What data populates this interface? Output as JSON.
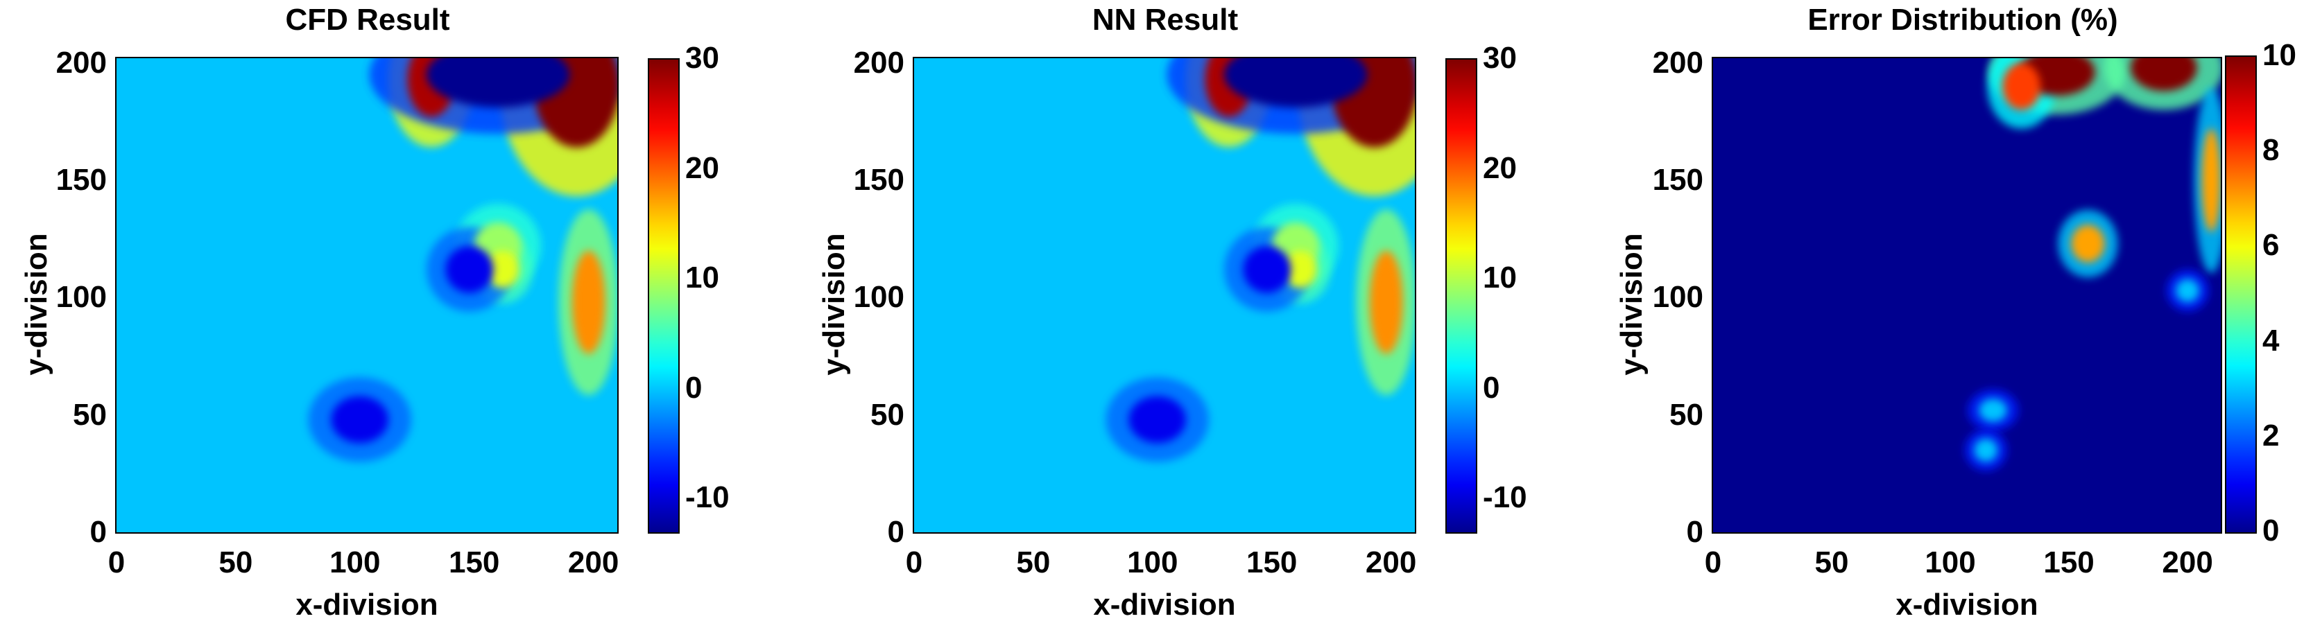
{
  "figure": {
    "panels": [
      {
        "title": "CFD Result",
        "xlabel": "x-division",
        "ylabel": "y-division",
        "colorbar_ticks": [
          "30",
          "20",
          "10",
          "0",
          "-10"
        ]
      },
      {
        "title": "NN Result",
        "xlabel": "x-division",
        "ylabel": "y-division",
        "colorbar_ticks": [
          "30",
          "20",
          "10",
          "0",
          "-10"
        ]
      },
      {
        "title": "Error Distribution (%)",
        "xlabel": "x-division",
        "ylabel": "y-division",
        "colorbar_ticks": [
          "10",
          "8",
          "6",
          "4",
          "2",
          "0"
        ]
      }
    ]
  },
  "chart_data": [
    {
      "type": "heatmap",
      "title": "CFD Result",
      "xlabel": "x-division",
      "ylabel": "y-division",
      "x_ticks": [
        0,
        50,
        100,
        150,
        200
      ],
      "y_ticks": [
        0,
        50,
        100,
        150,
        200
      ],
      "xlim": [
        0,
        210
      ],
      "ylim": [
        0,
        202
      ],
      "colorbar": {
        "min": -13,
        "max": 30,
        "ticks": [
          30,
          20,
          10,
          0,
          -10
        ],
        "colormap": "jet"
      },
      "background_value": 0,
      "features": [
        {
          "x": 193,
          "y": 190,
          "value": 30,
          "note": "high"
        },
        {
          "x": 132,
          "y": 193,
          "value": 28,
          "note": "high"
        },
        {
          "x": 198,
          "y": 98,
          "value": 18,
          "note": "high"
        },
        {
          "x": 160,
          "y": 122,
          "value": 9,
          "note": "mid"
        },
        {
          "x": 162,
          "y": 112,
          "value": 12,
          "note": "mid"
        },
        {
          "x": 160,
          "y": 195,
          "value": -13,
          "note": "low"
        },
        {
          "x": 148,
          "y": 112,
          "value": -9,
          "note": "low"
        },
        {
          "x": 102,
          "y": 48,
          "value": -9,
          "note": "low"
        }
      ]
    },
    {
      "type": "heatmap",
      "title": "NN Result",
      "xlabel": "x-division",
      "ylabel": "y-division",
      "x_ticks": [
        0,
        50,
        100,
        150,
        200
      ],
      "y_ticks": [
        0,
        50,
        100,
        150,
        200
      ],
      "xlim": [
        0,
        210
      ],
      "ylim": [
        0,
        202
      ],
      "colorbar": {
        "min": -13,
        "max": 30,
        "ticks": [
          30,
          20,
          10,
          0,
          -10
        ],
        "colormap": "jet"
      },
      "background_value": 0,
      "features": [
        {
          "x": 193,
          "y": 190,
          "value": 30,
          "note": "high"
        },
        {
          "x": 132,
          "y": 193,
          "value": 28,
          "note": "high"
        },
        {
          "x": 198,
          "y": 98,
          "value": 18,
          "note": "high"
        },
        {
          "x": 160,
          "y": 122,
          "value": 9,
          "note": "mid"
        },
        {
          "x": 162,
          "y": 112,
          "value": 12,
          "note": "mid"
        },
        {
          "x": 160,
          "y": 195,
          "value": -13,
          "note": "low"
        },
        {
          "x": 148,
          "y": 112,
          "value": -9,
          "note": "low"
        },
        {
          "x": 102,
          "y": 48,
          "value": -9,
          "note": "low"
        }
      ]
    },
    {
      "type": "heatmap",
      "title": "Error Distribution (%)",
      "xlabel": "x-division",
      "ylabel": "y-division",
      "x_ticks": [
        0,
        50,
        100,
        150,
        200
      ],
      "y_ticks": [
        0,
        50,
        100,
        150,
        200
      ],
      "xlim": [
        0,
        214
      ],
      "ylim": [
        0,
        202
      ],
      "colorbar": {
        "min": 0,
        "max": 10,
        "ticks": [
          10,
          8,
          6,
          4,
          2,
          0
        ],
        "colormap": "jet"
      },
      "background_value": 0,
      "features": [
        {
          "x": 190,
          "y": 198,
          "value": 10,
          "note": "high"
        },
        {
          "x": 145,
          "y": 196,
          "value": 10,
          "note": "high"
        },
        {
          "x": 130,
          "y": 190,
          "value": 8,
          "note": "high"
        },
        {
          "x": 210,
          "y": 150,
          "value": 7,
          "note": "high"
        },
        {
          "x": 158,
          "y": 123,
          "value": 7,
          "note": "high"
        },
        {
          "x": 118,
          "y": 52,
          "value": 3,
          "note": "mid"
        },
        {
          "x": 115,
          "y": 35,
          "value": 3,
          "note": "mid"
        },
        {
          "x": 200,
          "y": 103,
          "value": 3,
          "note": "mid"
        }
      ]
    }
  ]
}
